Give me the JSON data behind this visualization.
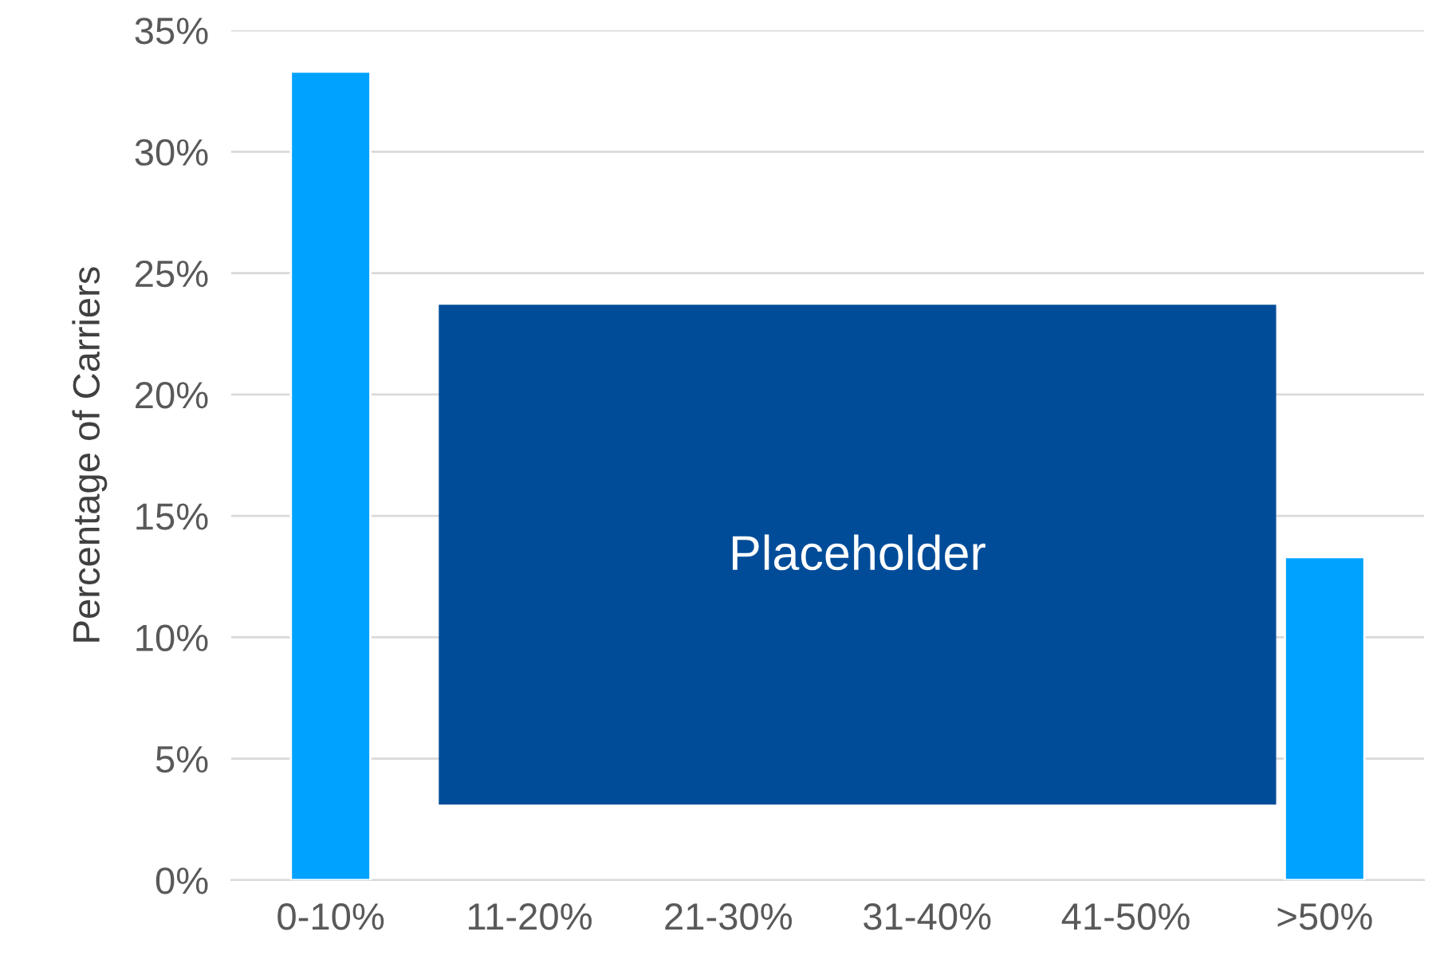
{
  "chart_data": {
    "type": "bar",
    "ylabel": "Percentage of Carriers",
    "categories": [
      "0-10%",
      "11-20%",
      "21-30%",
      "31-40%",
      "41-50%",
      ">50%"
    ],
    "values": [
      33.3,
      null,
      null,
      null,
      null,
      13.3
    ],
    "color": "#00a2ff",
    "ylim": [
      0,
      35
    ],
    "yticks": [
      {
        "value": 0,
        "label": "0%"
      },
      {
        "value": 5,
        "label": "5%"
      },
      {
        "value": 10,
        "label": "10%"
      },
      {
        "value": 15,
        "label": "15%"
      },
      {
        "value": 20,
        "label": "20%"
      },
      {
        "value": 25,
        "label": "25%"
      },
      {
        "value": 30,
        "label": "30%"
      },
      {
        "value": 35,
        "label": "35%"
      }
    ],
    "grid": "y",
    "annotations": [
      "Placeholder"
    ]
  }
}
